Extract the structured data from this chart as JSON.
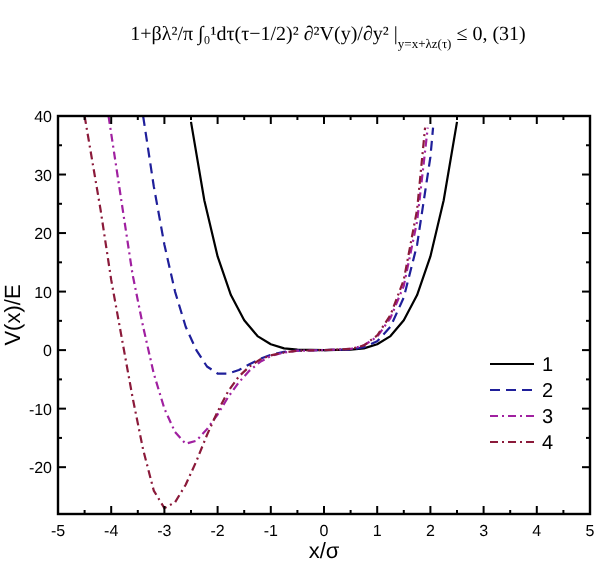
{
  "chart_data": {
    "type": "line",
    "xlabel": "x/σ",
    "ylabel": "V(x)/E",
    "annotations": [
      "1+βλ²/π ∫₀¹dτ(τ−1/2)² ∂²V(y)/∂y² |$_{y=x+λz(τ)}$ ≤ 0,        (31)"
    ],
    "xlim": [
      -5,
      5
    ],
    "ylim": [
      -28,
      40
    ],
    "xticks": [
      -5,
      -4,
      -3,
      -2,
      -1,
      0,
      1,
      2,
      3,
      4,
      5
    ],
    "yticks": [
      -20,
      -10,
      0,
      10,
      20,
      30,
      40
    ],
    "grid": false,
    "legend": "bottom right",
    "series": [
      {
        "name": "1",
        "color": "#000000",
        "line_style": "solid",
        "x": [
          -2.5,
          -2.25,
          -2,
          -1.75,
          -1.5,
          -1.25,
          -1,
          -0.75,
          -0.5,
          0,
          0.5,
          0.75,
          1,
          1.25,
          1.5,
          1.75,
          2,
          2.25,
          2.5
        ],
        "values": [
          39,
          25.6,
          16,
          9.4,
          5.1,
          2.4,
          1,
          0.3,
          0.1,
          0,
          0.1,
          0.3,
          1,
          2.4,
          5.1,
          9.4,
          16,
          25.6,
          39
        ]
      },
      {
        "name": "2",
        "color": "#1f1f9a",
        "line_style": "dashed",
        "x": [
          -3.4,
          -3.2,
          -3,
          -2.8,
          -2.6,
          -2.4,
          -2.2,
          -2,
          -1.8,
          -1.6,
          -1.4,
          -1.2,
          -1,
          -0.75,
          -0.5,
          0,
          0.5,
          0.75,
          1,
          1.25,
          1.5,
          1.75,
          2,
          2.05
        ],
        "values": [
          40,
          28,
          18,
          10,
          4,
          0,
          -2.8,
          -4,
          -4,
          -3.4,
          -2.4,
          -1.5,
          -0.8,
          -0.3,
          -0.1,
          0,
          0.1,
          0.5,
          1.5,
          4,
          9,
          18,
          33,
          38
        ]
      },
      {
        "name": "3",
        "color": "#a020a0",
        "line_style": "dotted",
        "x": [
          -4.05,
          -3.8,
          -3.6,
          -3.4,
          -3.2,
          -3,
          -2.8,
          -2.6,
          -2.4,
          -2.2,
          -2,
          -1.8,
          -1.6,
          -1.4,
          -1.2,
          -1,
          -0.75,
          -0.5,
          0,
          0.5,
          0.75,
          1,
          1.25,
          1.5,
          1.75,
          1.95
        ],
        "values": [
          40,
          25,
          13,
          4,
          -4,
          -10,
          -14,
          -16,
          -15.5,
          -13.5,
          -11,
          -8,
          -5.5,
          -3.5,
          -2,
          -1,
          -0.4,
          -0.1,
          0,
          0.2,
          0.8,
          2.3,
          5.5,
          11,
          22,
          38
        ]
      },
      {
        "name": "4",
        "color": "#8b1a3a",
        "line_style": "dotted",
        "x": [
          -4.5,
          -4.2,
          -4,
          -3.8,
          -3.6,
          -3.4,
          -3.2,
          -3,
          -2.8,
          -2.6,
          -2.4,
          -2.2,
          -2,
          -1.8,
          -1.6,
          -1.4,
          -1.2,
          -1,
          -0.75,
          -0.5,
          0,
          0.5,
          0.75,
          1,
          1.25,
          1.5,
          1.75,
          1.9
        ],
        "values": [
          40,
          24,
          12,
          2,
          -8,
          -17,
          -24,
          -27,
          -26,
          -23,
          -19,
          -14.5,
          -10.5,
          -7,
          -4.5,
          -2.8,
          -1.6,
          -0.9,
          -0.4,
          -0.1,
          0,
          0.2,
          0.8,
          2.5,
          6,
          12,
          24,
          38
        ]
      }
    ]
  }
}
